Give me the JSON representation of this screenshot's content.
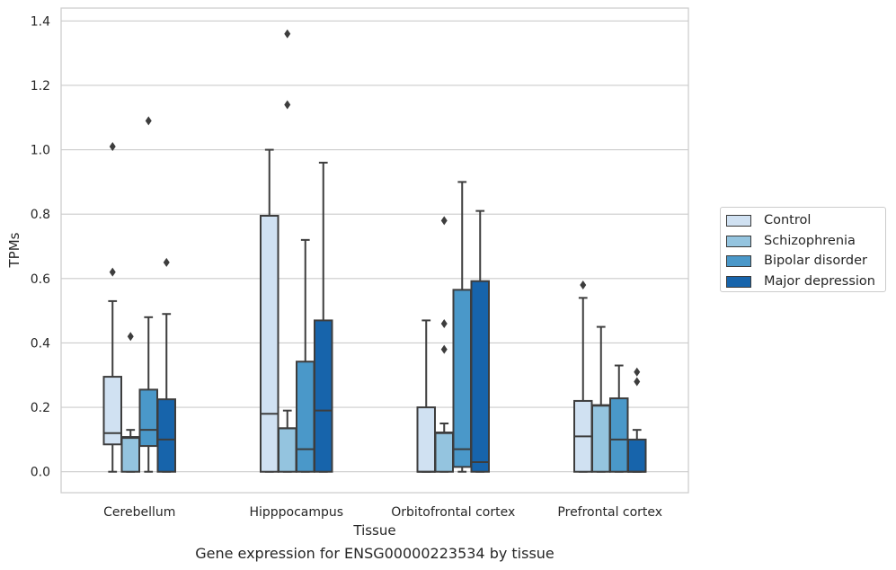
{
  "chart_data": {
    "type": "box",
    "title": "",
    "caption": "Gene expression for ENSG00000223534 by tissue",
    "xlabel": "Tissue",
    "ylabel": "TPMs",
    "ylim": [
      -0.065,
      1.44
    ],
    "yticks": [
      0.0,
      0.2,
      0.4,
      0.6,
      0.8,
      1.0,
      1.2,
      1.4
    ],
    "ytick_labels": [
      "0.0",
      "0.2",
      "0.4",
      "0.6",
      "0.8",
      "1.0",
      "1.2",
      "1.4"
    ],
    "grid": true,
    "legend_position": "right",
    "categories": [
      "Cerebellum",
      "Hipppocampus",
      "Orbitofrontal cortex",
      "Prefrontal cortex"
    ],
    "series": [
      {
        "name": "Control",
        "color": "#d0e1f2",
        "boxes": [
          {
            "whislo": 0.0,
            "q1": 0.085,
            "med": 0.12,
            "q3": 0.295,
            "whishi": 0.53,
            "fliers": [
              0.62,
              1.01
            ]
          },
          {
            "whislo": 0.0,
            "q1": 0.0,
            "med": 0.18,
            "q3": 0.795,
            "whishi": 1.0,
            "fliers": []
          },
          {
            "whislo": 0.0,
            "q1": 0.0,
            "med": 0.0,
            "q3": 0.2,
            "whishi": 0.47,
            "fliers": []
          },
          {
            "whislo": 0.0,
            "q1": 0.0,
            "med": 0.11,
            "q3": 0.22,
            "whishi": 0.54,
            "fliers": [
              0.58
            ]
          }
        ]
      },
      {
        "name": "Schizophrenia",
        "color": "#94c4df",
        "boxes": [
          {
            "whislo": 0.0,
            "q1": 0.0,
            "med": 0.105,
            "q3": 0.108,
            "whishi": 0.13,
            "fliers": [
              0.42
            ]
          },
          {
            "whislo": 0.0,
            "q1": 0.0,
            "med": 0.135,
            "q3": 0.135,
            "whishi": 0.19,
            "fliers": [
              1.14,
              1.36
            ]
          },
          {
            "whislo": 0.0,
            "q1": 0.0,
            "med": 0.12,
            "q3": 0.122,
            "whishi": 0.15,
            "fliers": [
              0.38,
              0.46,
              0.78
            ]
          },
          {
            "whislo": 0.0,
            "q1": 0.0,
            "med": 0.205,
            "q3": 0.207,
            "whishi": 0.45,
            "fliers": []
          }
        ]
      },
      {
        "name": "Bipolar disorder",
        "color": "#4a98c9",
        "boxes": [
          {
            "whislo": 0.0,
            "q1": 0.08,
            "med": 0.13,
            "q3": 0.255,
            "whishi": 0.48,
            "fliers": [
              1.09
            ]
          },
          {
            "whislo": 0.0,
            "q1": 0.0,
            "med": 0.07,
            "q3": 0.342,
            "whishi": 0.72,
            "fliers": []
          },
          {
            "whislo": 0.0,
            "q1": 0.015,
            "med": 0.07,
            "q3": 0.565,
            "whishi": 0.9,
            "fliers": []
          },
          {
            "whislo": 0.0,
            "q1": 0.0,
            "med": 0.1,
            "q3": 0.228,
            "whishi": 0.33,
            "fliers": []
          }
        ]
      },
      {
        "name": "Major depression",
        "color": "#1764ab",
        "boxes": [
          {
            "whislo": 0.0,
            "q1": 0.0,
            "med": 0.1,
            "q3": 0.225,
            "whishi": 0.49,
            "fliers": [
              0.65
            ]
          },
          {
            "whislo": 0.0,
            "q1": 0.0,
            "med": 0.19,
            "q3": 0.47,
            "whishi": 0.96,
            "fliers": []
          },
          {
            "whislo": 0.0,
            "q1": 0.0,
            "med": 0.03,
            "q3": 0.592,
            "whishi": 0.81,
            "fliers": []
          },
          {
            "whislo": 0.0,
            "q1": 0.0,
            "med": 0.0,
            "q3": 0.1,
            "whishi": 0.13,
            "fliers": [
              0.28,
              0.31
            ]
          }
        ]
      }
    ]
  }
}
